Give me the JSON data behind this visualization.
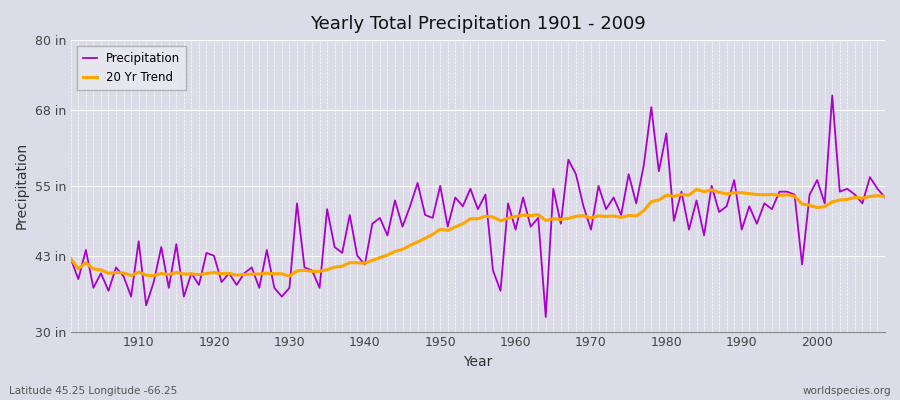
{
  "title": "Yearly Total Precipitation 1901 - 2009",
  "xlabel": "Year",
  "ylabel": "Precipitation",
  "footnote_left": "Latitude 45.25 Longitude -66.25",
  "footnote_right": "worldspecies.org",
  "ylim": [
    30,
    80
  ],
  "yticks": [
    30,
    43,
    55,
    68,
    80
  ],
  "ytick_labels": [
    "30 in",
    "43 in",
    "55 in",
    "68 in",
    "80 in"
  ],
  "xlim": [
    1901,
    2009
  ],
  "xticks": [
    1910,
    1920,
    1930,
    1940,
    1950,
    1960,
    1970,
    1980,
    1990,
    2000
  ],
  "precip_color": "#aa00cc",
  "trend_color": "#FFA500",
  "plot_bg_color": "#dcdce8",
  "fig_bg_color": "#dcdce8",
  "legend_labels": [
    "Precipitation",
    "20 Yr Trend"
  ],
  "years": [
    1901,
    1902,
    1903,
    1904,
    1905,
    1906,
    1907,
    1908,
    1909,
    1910,
    1911,
    1912,
    1913,
    1914,
    1915,
    1916,
    1917,
    1918,
    1919,
    1920,
    1921,
    1922,
    1923,
    1924,
    1925,
    1926,
    1927,
    1928,
    1929,
    1930,
    1931,
    1932,
    1933,
    1934,
    1935,
    1936,
    1937,
    1938,
    1939,
    1940,
    1941,
    1942,
    1943,
    1944,
    1945,
    1946,
    1947,
    1948,
    1949,
    1950,
    1951,
    1952,
    1953,
    1954,
    1955,
    1956,
    1957,
    1958,
    1959,
    1960,
    1961,
    1962,
    1963,
    1964,
    1965,
    1966,
    1967,
    1968,
    1969,
    1970,
    1971,
    1972,
    1973,
    1974,
    1975,
    1976,
    1977,
    1978,
    1979,
    1980,
    1981,
    1982,
    1983,
    1984,
    1985,
    1986,
    1987,
    1988,
    1989,
    1990,
    1991,
    1992,
    1993,
    1994,
    1995,
    1996,
    1997,
    1998,
    1999,
    2000,
    2001,
    2002,
    2003,
    2004,
    2005,
    2006,
    2007,
    2008,
    2009
  ],
  "precip": [
    42.5,
    39.0,
    44.0,
    37.5,
    40.0,
    37.0,
    41.0,
    39.5,
    36.0,
    45.5,
    34.5,
    38.5,
    44.5,
    37.5,
    45.0,
    36.0,
    40.0,
    38.0,
    43.5,
    43.0,
    38.5,
    40.0,
    38.0,
    40.0,
    41.0,
    37.5,
    44.0,
    37.5,
    36.0,
    37.5,
    52.0,
    41.0,
    40.5,
    37.5,
    51.0,
    44.5,
    43.5,
    50.0,
    43.0,
    41.5,
    48.5,
    49.5,
    46.5,
    52.5,
    48.0,
    51.5,
    55.5,
    50.0,
    49.5,
    55.0,
    48.0,
    53.0,
    51.5,
    54.5,
    51.0,
    53.5,
    40.5,
    37.0,
    52.0,
    47.5,
    53.0,
    48.0,
    49.5,
    32.5,
    54.5,
    48.5,
    59.5,
    57.0,
    51.5,
    47.5,
    55.0,
    51.0,
    53.0,
    50.0,
    57.0,
    52.0,
    58.5,
    68.5,
    57.5,
    64.0,
    49.0,
    54.0,
    47.5,
    52.5,
    46.5,
    55.0,
    50.5,
    51.5,
    56.0,
    47.5,
    51.5,
    48.5,
    52.0,
    51.0,
    54.0,
    54.0,
    53.5,
    41.5,
    53.5,
    56.0,
    52.0,
    70.5,
    54.0,
    54.5,
    53.5,
    52.0,
    56.5,
    54.5,
    53.0
  ]
}
